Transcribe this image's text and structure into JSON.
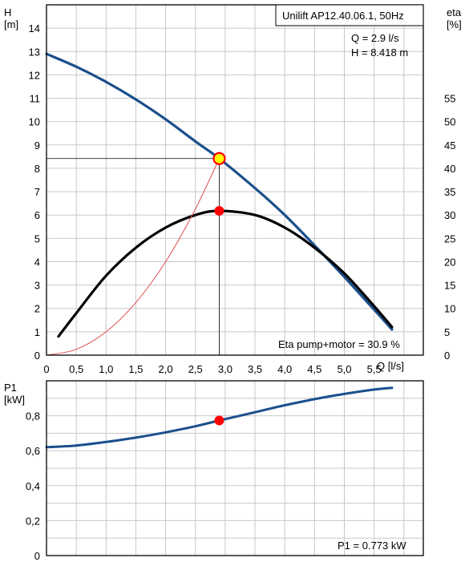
{
  "chart_data": [
    {
      "type": "line",
      "title": "Unilift AP12.40.06.1, 50Hz",
      "xlabel": "Q [l/s]",
      "ylabel_name": "H",
      "ylabel_unit": "[m]",
      "y2label_name": "eta",
      "y2label_unit": "[%]",
      "xlim": [
        0,
        6.2
      ],
      "ylim": [
        0,
        15
      ],
      "y2lim": [
        0,
        75
      ],
      "x_ticks": [
        0,
        0.5,
        1,
        1.5,
        2,
        2.5,
        3,
        3.5,
        4,
        4.5,
        5,
        5.5
      ],
      "x_tick_labels": [
        "0",
        "0,5",
        "1,0",
        "1,5",
        "2,0",
        "2,5",
        "3,0",
        "3,5",
        "4,0",
        "4,5",
        "5,0",
        "5,5"
      ],
      "y_ticks": [
        0,
        1,
        2,
        3,
        4,
        5,
        6,
        7,
        8,
        9,
        10,
        11,
        12,
        13,
        14
      ],
      "y_tick_labels": [
        "0",
        "1",
        "2",
        "3",
        "4",
        "5",
        "6",
        "7",
        "8",
        "9",
        "10",
        "11",
        "12",
        "13",
        "14"
      ],
      "y2_ticks": [
        0,
        5,
        10,
        15,
        20,
        25,
        30,
        35,
        40,
        45,
        50,
        55
      ],
      "y2_tick_labels": [
        "0",
        "5",
        "10",
        "15",
        "20",
        "25",
        "30",
        "35",
        "40",
        "45",
        "50",
        "55"
      ],
      "grid": true,
      "operating_point": {
        "q": 2.9,
        "h": 8.418,
        "eta": 30.9
      },
      "readout_q": "Q = 2.9 l/s",
      "readout_h": "H = 8.418 m",
      "annotation": "Eta pump+motor = 30.9 %",
      "series": [
        {
          "id": "head",
          "color": "#1b4f8c",
          "x": [
            0,
            0.5,
            1.0,
            1.5,
            2.0,
            2.5,
            2.9,
            3.5,
            4.0,
            4.5,
            5.0,
            5.5,
            5.8
          ],
          "y": [
            12.9,
            12.35,
            11.7,
            10.95,
            10.1,
            9.15,
            8.418,
            7.15,
            6.0,
            4.7,
            3.35,
            1.95,
            1.1
          ]
        },
        {
          "id": "efficiency",
          "axis": "y2",
          "color": "#000000",
          "x": [
            0.2,
            0.5,
            1.0,
            1.5,
            2.0,
            2.5,
            2.9,
            3.5,
            4.0,
            4.5,
            5.0,
            5.5,
            5.8
          ],
          "y": [
            4.0,
            9.0,
            17.0,
            23.0,
            27.3,
            30.0,
            30.9,
            30.0,
            27.3,
            23.0,
            17.5,
            10.5,
            6.0
          ]
        },
        {
          "id": "system-curve",
          "color": "#e05050",
          "x": [
            0,
            0.5,
            1.0,
            1.5,
            2.0,
            2.5,
            2.9
          ],
          "y": [
            0,
            0.25,
            1.0,
            2.25,
            4.0,
            6.26,
            8.418
          ]
        }
      ]
    },
    {
      "type": "line",
      "ylabel_name": "P1",
      "ylabel_unit": "[kW]",
      "xlim": [
        0,
        6.2
      ],
      "ylim": [
        0,
        1.0
      ],
      "y_ticks": [
        0,
        0.2,
        0.4,
        0.6,
        0.8
      ],
      "y_tick_labels": [
        "0",
        "0,2",
        "0,4",
        "0,6",
        "0,8"
      ],
      "grid": true,
      "operating_point": {
        "q": 2.9,
        "p": 0.773
      },
      "annotation": "P1 = 0.773 kW",
      "series": [
        {
          "id": "power",
          "color": "#1b4f8c",
          "x": [
            0,
            0.5,
            1.0,
            1.5,
            2.0,
            2.5,
            2.9,
            3.5,
            4.0,
            4.5,
            5.0,
            5.5,
            5.8
          ],
          "y": [
            0.62,
            0.63,
            0.65,
            0.675,
            0.705,
            0.74,
            0.773,
            0.82,
            0.86,
            0.895,
            0.925,
            0.95,
            0.96
          ]
        }
      ]
    }
  ],
  "colors": {
    "grid": "#c8c8c8",
    "operating_point": "#ff0000",
    "operating_point_highlight": "#ffff00",
    "crosshair": "#000000"
  }
}
